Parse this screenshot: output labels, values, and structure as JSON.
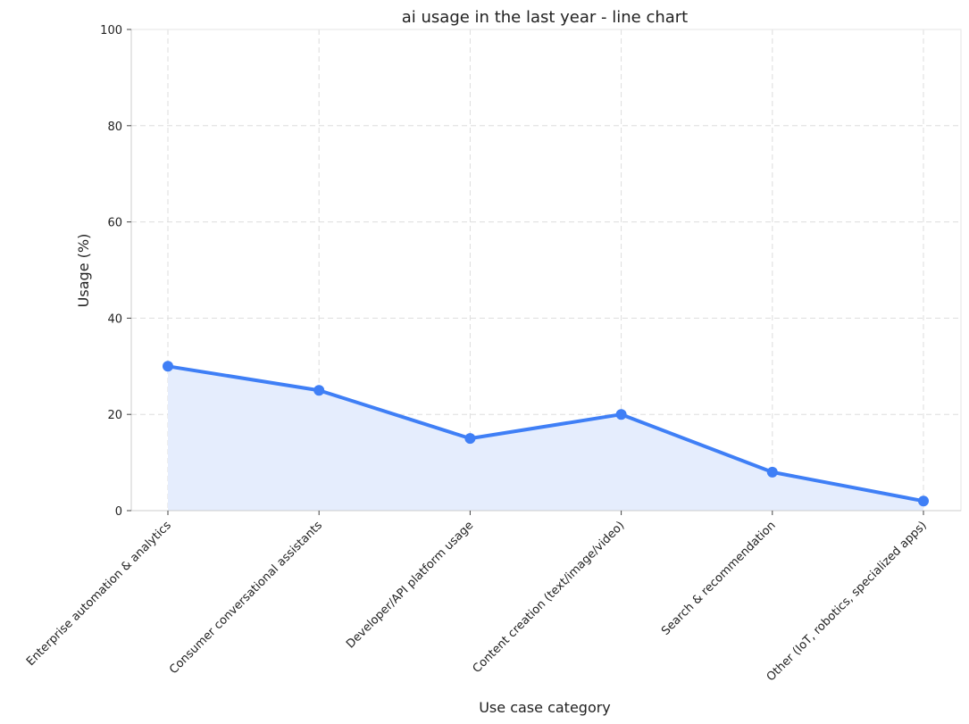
{
  "chart_data": {
    "type": "line",
    "title": "ai usage in the last year - line chart",
    "xlabel": "Use case category",
    "ylabel": "Usage (%)",
    "ylim": [
      0,
      100
    ],
    "yticks": [
      0,
      20,
      40,
      60,
      80,
      100
    ],
    "grid": true,
    "categories": [
      "Enterprise automation & analytics",
      "Consumer conversational assistants",
      "Developer/API platform usage",
      "Content creation (text/image/video)",
      "Search & recommendation",
      "Other (IoT, robotics, specialized apps)"
    ],
    "series": [
      {
        "values": [
          30,
          25,
          15,
          20,
          8,
          2
        ],
        "color": "#3f7ff6",
        "fill_color": "#e5edfd"
      }
    ]
  }
}
